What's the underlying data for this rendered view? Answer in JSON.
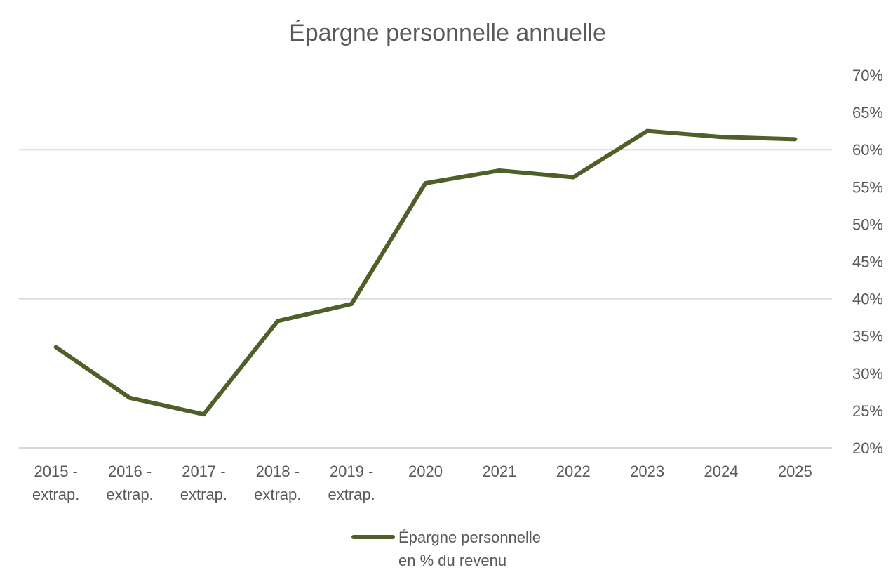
{
  "chart_data": {
    "type": "line",
    "title": "Épargne personnelle annuelle",
    "xlabel": "",
    "ylabel": "",
    "categories": [
      [
        "2015 -",
        "extrap."
      ],
      [
        "2016 -",
        "extrap."
      ],
      [
        "2017 -",
        "extrap."
      ],
      [
        "2018 -",
        "extrap."
      ],
      [
        "2019 -",
        "extrap."
      ],
      [
        "2020"
      ],
      [
        "2021"
      ],
      [
        "2022"
      ],
      [
        "2023"
      ],
      [
        "2024"
      ],
      [
        "2025"
      ]
    ],
    "series": [
      {
        "name": [
          "Épargne personnelle",
          "en % du revenu"
        ],
        "values": [
          33.5,
          26.7,
          24.5,
          37.0,
          39.3,
          55.5,
          57.2,
          56.3,
          62.5,
          61.7,
          61.4
        ],
        "color": "#4f5f2a"
      }
    ],
    "ylim": [
      20,
      70
    ],
    "yticks": [
      20,
      25,
      30,
      35,
      40,
      45,
      50,
      55,
      60,
      65,
      70
    ],
    "ytick_suffix": "%",
    "gridlines_at": [
      20,
      40,
      60
    ],
    "grid_color": "#d9d9d9",
    "y_axis_side": "right",
    "legend_position": "bottom"
  }
}
